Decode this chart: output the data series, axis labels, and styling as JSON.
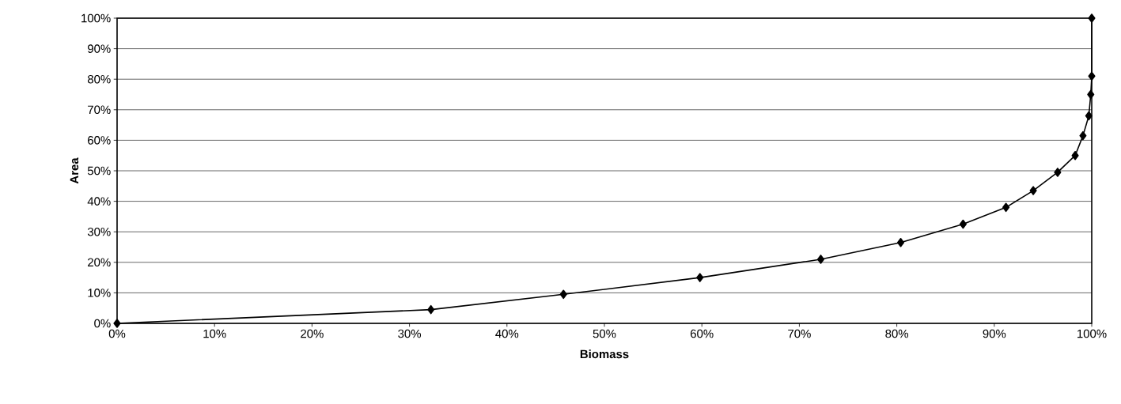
{
  "chart_data": {
    "type": "line",
    "xlabel": "Biomass",
    "ylabel": "Area",
    "x": [
      0,
      32.2,
      45.8,
      59.8,
      72.2,
      80.4,
      86.8,
      91.2,
      94.0,
      96.5,
      98.3,
      99.1,
      99.7,
      99.9,
      100,
      100
    ],
    "series": [
      {
        "color": "#000000",
        "values": [
          0,
          4.5,
          9.5,
          15,
          21,
          26.5,
          32.5,
          38,
          43.5,
          49.5,
          55,
          61.5,
          68,
          75,
          81,
          100
        ]
      }
    ],
    "xlim": [
      0,
      100
    ],
    "ylim": [
      0,
      100
    ],
    "xticks": [
      {
        "value": 0,
        "label": "0%"
      },
      {
        "value": 10,
        "label": "10%"
      },
      {
        "value": 20,
        "label": "20%"
      },
      {
        "value": 30,
        "label": "30%"
      },
      {
        "value": 40,
        "label": "40%"
      },
      {
        "value": 50,
        "label": "50%"
      },
      {
        "value": 60,
        "label": "60%"
      },
      {
        "value": 70,
        "label": "70%"
      },
      {
        "value": 80,
        "label": "80%"
      },
      {
        "value": 90,
        "label": "90%"
      },
      {
        "value": 100,
        "label": "100%"
      }
    ],
    "yticks": [
      {
        "value": 0,
        "label": "0%"
      },
      {
        "value": 10,
        "label": "10%"
      },
      {
        "value": 20,
        "label": "20%"
      },
      {
        "value": 30,
        "label": "30%"
      },
      {
        "value": 40,
        "label": "40%"
      },
      {
        "value": 50,
        "label": "50%"
      },
      {
        "value": 60,
        "label": "60%"
      },
      {
        "value": 70,
        "label": "70%"
      },
      {
        "value": 80,
        "label": "80%"
      },
      {
        "value": 90,
        "label": "90%"
      },
      {
        "value": 100,
        "label": "100%"
      }
    ],
    "grid": "y",
    "marker": "diamond",
    "line_style": "solid"
  }
}
